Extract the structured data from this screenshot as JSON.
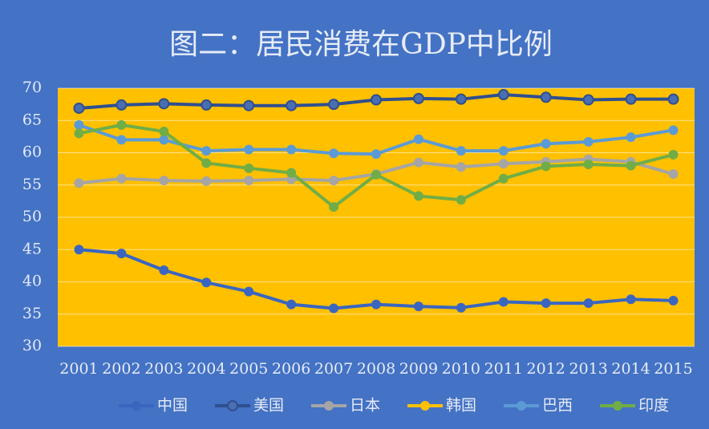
{
  "chart_data": {
    "type": "line",
    "title": "图二：居民消费在GDP中比例",
    "categories": [
      "2001",
      "2002",
      "2003",
      "2004",
      "2005",
      "2006",
      "2007",
      "2008",
      "2009",
      "2010",
      "2011",
      "2012",
      "2013",
      "2014",
      "2015"
    ],
    "ylim": [
      30,
      70
    ],
    "yticks": [
      30,
      35,
      40,
      45,
      50,
      55,
      60,
      65,
      70
    ],
    "grid": true,
    "series": [
      {
        "name": "中国",
        "color": "#3a66c0",
        "values": [
          45.0,
          44.4,
          41.8,
          39.9,
          38.5,
          36.5,
          35.9,
          36.5,
          36.2,
          36.0,
          36.9,
          36.7,
          36.7,
          37.3,
          37.1
        ]
      },
      {
        "name": "美国",
        "color": "#2f4f8f",
        "values": [
          66.9,
          67.4,
          67.6,
          67.4,
          67.3,
          67.3,
          67.5,
          68.2,
          68.4,
          68.3,
          69.0,
          68.6,
          68.2,
          68.3,
          68.3
        ]
      },
      {
        "name": "日本",
        "color": "#a5a5a5",
        "values": [
          55.3,
          56.0,
          55.7,
          55.6,
          55.7,
          55.9,
          55.7,
          56.7,
          58.5,
          57.8,
          58.3,
          58.6,
          59.0,
          58.6,
          56.7
        ]
      },
      {
        "name": "韩国",
        "color": "#ffc000",
        "values": [
          null,
          null,
          null,
          null,
          null,
          null,
          null,
          null,
          null,
          null,
          null,
          null,
          null,
          null,
          null
        ]
      },
      {
        "name": "巴西",
        "color": "#5b9bd5",
        "values": [
          64.3,
          62.0,
          62.0,
          60.3,
          60.5,
          60.5,
          59.9,
          59.8,
          62.1,
          60.3,
          60.3,
          61.4,
          61.7,
          62.4,
          63.5
        ]
      },
      {
        "name": "印度",
        "color": "#70ad47",
        "values": [
          63.0,
          64.3,
          63.3,
          58.4,
          57.6,
          56.9,
          51.6,
          56.6,
          53.3,
          52.7,
          56.0,
          57.9,
          58.2,
          58.0,
          59.7
        ]
      }
    ]
  }
}
